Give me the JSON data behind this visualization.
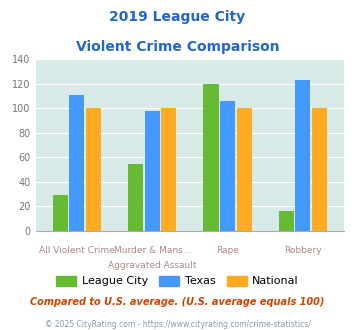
{
  "title_line1": "2019 League City",
  "title_line2": "Violent Crime Comparison",
  "x_labels_top": [
    "",
    "Murder & Mans...",
    "",
    ""
  ],
  "x_labels_bottom": [
    "All Violent Crime",
    "Aggravated Assault",
    "Rape",
    "Robbery"
  ],
  "league_city": [
    29,
    55,
    120,
    16
  ],
  "texas": [
    111,
    98,
    106,
    123
  ],
  "national": [
    100,
    100,
    100,
    100
  ],
  "colors": {
    "league_city": "#66bb33",
    "texas": "#4499ff",
    "national": "#ffaa22"
  },
  "ylim": [
    0,
    140
  ],
  "yticks": [
    0,
    20,
    40,
    60,
    80,
    100,
    120,
    140
  ],
  "plot_bg": "#d8eae8",
  "title_color": "#2266cc",
  "xlabel_color": "#aa8888",
  "footer_note": "Compared to U.S. average. (U.S. average equals 100)",
  "footer_url": "© 2025 CityRating.com - https://www.cityrating.com/crime-statistics/",
  "legend_labels": [
    "League City",
    "Texas",
    "National"
  ]
}
